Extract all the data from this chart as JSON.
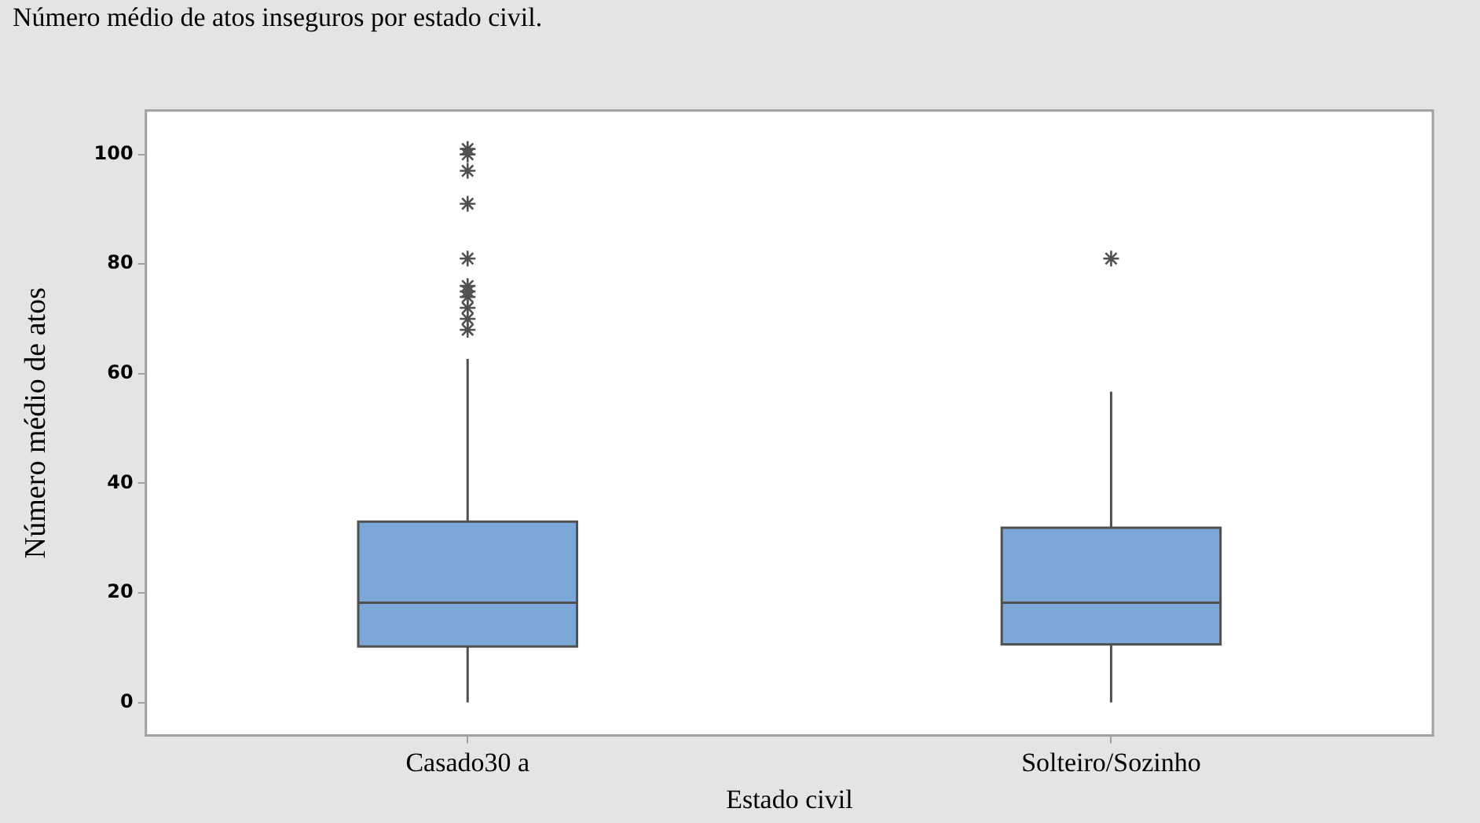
{
  "chart_data": {
    "type": "box",
    "title": "Número médio de atos inseguros por estado civil.",
    "xlabel": "Estado civil",
    "ylabel": "Número médio de atos",
    "categories": [
      "Casado30 a",
      "Solteiro/Sozinho"
    ],
    "boxes": [
      {
        "low": 0,
        "q1": 10.2,
        "median": 18.2,
        "q3": 33,
        "high": 62.7,
        "outliers": [
          101,
          100,
          97,
          91,
          81,
          76,
          75,
          74,
          72,
          70,
          68
        ]
      },
      {
        "low": 0,
        "q1": 10.6,
        "median": 18.2,
        "q3": 31.9,
        "high": 56.7,
        "outliers": [
          81
        ]
      }
    ],
    "color": "#7ba7d9",
    "marker": "star",
    "ylim": [
      -6,
      108
    ],
    "yticks": [
      0,
      20,
      40,
      60,
      80,
      100
    ],
    "grid": false,
    "legend": false
  }
}
